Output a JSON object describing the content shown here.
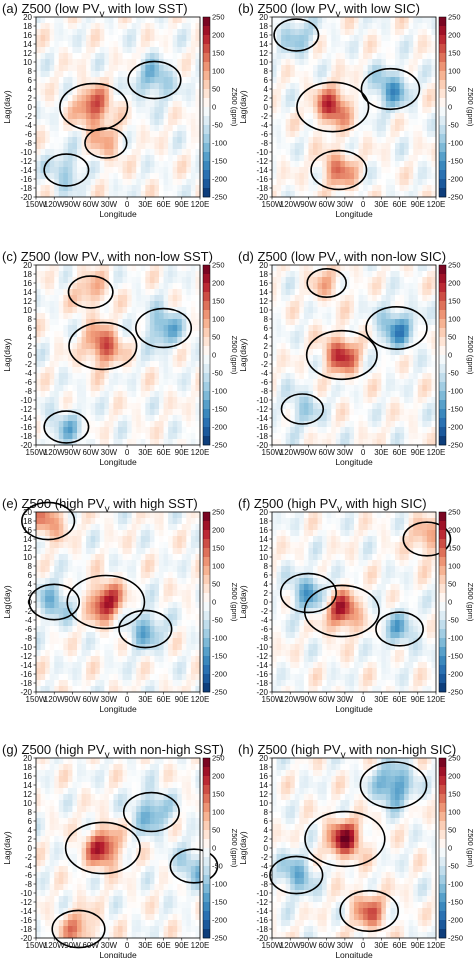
{
  "figure": {
    "colorbar": {
      "label": "Z500 (gpm)",
      "ticks": [
        250,
        200,
        150,
        100,
        50,
        0,
        -50,
        -100,
        -150,
        -200,
        -250
      ],
      "range": [
        -250,
        250
      ],
      "colors": [
        "#08306b",
        "#2166ac",
        "#4393c3",
        "#92c5de",
        "#d1e5f0",
        "#ffffff",
        "#fddbc7",
        "#f4a582",
        "#d6604d",
        "#b2182b",
        "#67001f"
      ]
    },
    "axes": {
      "ylabel": "Lag(day)",
      "xlabel": "Longitude",
      "yticks": [
        "20",
        "18",
        "16",
        "14",
        "12",
        "10",
        "8",
        "6",
        "4",
        "2",
        "0",
        "-2",
        "-4",
        "-6",
        "-8",
        "-10",
        "-12",
        "-14",
        "-16",
        "-18",
        "-20"
      ],
      "xticks": [
        "150W",
        "120W",
        "90W",
        "60W",
        "30W",
        "0",
        "30E",
        "60E",
        "90E",
        "120E"
      ]
    }
  },
  "chart_data": [
    {
      "id": "a",
      "type": "heatmap",
      "title_pre": "(a) Z500 (low PV",
      "title_sub": "y",
      "title_post": " with low SST)",
      "xlim": [
        -150,
        120
      ],
      "ylim": [
        -20,
        20
      ],
      "xlabel": "Longitude",
      "ylabel": "Lag(day)",
      "zlabel": "Z500 (gpm)",
      "zlim": [
        -250,
        250
      ],
      "positive_centers": [
        {
          "lon": -55,
          "lag": 0,
          "value": 175
        },
        {
          "lon": -35,
          "lag": -8,
          "value": 80
        }
      ],
      "negative_centers": [
        {
          "lon": 45,
          "lag": 6,
          "value": -120
        },
        {
          "lon": -100,
          "lag": -14,
          "value": -90
        }
      ]
    },
    {
      "id": "b",
      "type": "heatmap",
      "title_pre": "(b) Z500 (low PV",
      "title_sub": "y",
      "title_post": " with low SIC)",
      "xlim": [
        -150,
        120
      ],
      "ylim": [
        -20,
        20
      ],
      "xlabel": "Longitude",
      "ylabel": "Lag(day)",
      "zlabel": "Z500 (gpm)",
      "zlim": [
        -250,
        250
      ],
      "positive_centers": [
        {
          "lon": -50,
          "lag": 0,
          "value": 190
        },
        {
          "lon": -40,
          "lag": -14,
          "value": 130
        }
      ],
      "negative_centers": [
        {
          "lon": 45,
          "lag": 4,
          "value": -140
        },
        {
          "lon": -110,
          "lag": 16,
          "value": -90
        }
      ]
    },
    {
      "id": "c",
      "type": "heatmap",
      "title_pre": "(c) Z500 (low PV",
      "title_sub": "y",
      "title_post": " with non-low SST)",
      "xlim": [
        -150,
        120
      ],
      "ylim": [
        -20,
        20
      ],
      "xlabel": "Longitude",
      "ylabel": "Lag(day)",
      "zlabel": "Z500 (gpm)",
      "zlim": [
        -250,
        250
      ],
      "positive_centers": [
        {
          "lon": -40,
          "lag": 2,
          "value": 175
        },
        {
          "lon": -60,
          "lag": 14,
          "value": 90
        }
      ],
      "negative_centers": [
        {
          "lon": 60,
          "lag": 6,
          "value": -130
        },
        {
          "lon": -100,
          "lag": -16,
          "value": -90
        }
      ]
    },
    {
      "id": "d",
      "type": "heatmap",
      "title_pre": "(d) Z500 (low PV",
      "title_sub": "y",
      "title_post": " with non-low SIC)",
      "xlim": [
        -150,
        120
      ],
      "ylim": [
        -20,
        20
      ],
      "xlabel": "Longitude",
      "ylabel": "Lag(day)",
      "zlabel": "Z500 (gpm)",
      "zlim": [
        -250,
        250
      ],
      "positive_centers": [
        {
          "lon": -35,
          "lag": 0,
          "value": 185
        },
        {
          "lon": -60,
          "lag": 16,
          "value": 70
        }
      ],
      "negative_centers": [
        {
          "lon": 55,
          "lag": 6,
          "value": -150
        },
        {
          "lon": -100,
          "lag": -12,
          "value": -80
        }
      ]
    },
    {
      "id": "e",
      "type": "heatmap",
      "title_pre": "(e) Z500 (high PV",
      "title_sub": "y",
      "title_post": " with high SST)",
      "xlim": [
        -150,
        120
      ],
      "ylim": [
        -20,
        20
      ],
      "xlabel": "Longitude",
      "ylabel": "Lag(day)",
      "zlabel": "Z500 (gpm)",
      "zlim": [
        -250,
        250
      ],
      "positive_centers": [
        {
          "lon": -35,
          "lag": 0,
          "value": 210
        },
        {
          "lon": -130,
          "lag": 18,
          "value": 120
        }
      ],
      "negative_centers": [
        {
          "lon": 30,
          "lag": -6,
          "value": -120
        },
        {
          "lon": -120,
          "lag": 0,
          "value": -110
        }
      ]
    },
    {
      "id": "f",
      "type": "heatmap",
      "title_pre": "(f) Z500 (high PV",
      "title_sub": "y",
      "title_post": " with high SIC)",
      "xlim": [
        -150,
        120
      ],
      "ylim": [
        -20,
        20
      ],
      "xlabel": "Longitude",
      "ylabel": "Lag(day)",
      "zlabel": "Z500 (gpm)",
      "zlim": [
        -250,
        250
      ],
      "positive_centers": [
        {
          "lon": -35,
          "lag": -2,
          "value": 200
        },
        {
          "lon": 105,
          "lag": 14,
          "value": 100
        }
      ],
      "negative_centers": [
        {
          "lon": -90,
          "lag": 2,
          "value": -130
        },
        {
          "lon": 60,
          "lag": -6,
          "value": -100
        }
      ]
    },
    {
      "id": "g",
      "type": "heatmap",
      "title_pre": "(g) Z500 (high PV",
      "title_sub": "y",
      "title_post": " with non-high SST)",
      "xlim": [
        -150,
        120
      ],
      "ylim": [
        -20,
        20
      ],
      "xlabel": "Longitude",
      "ylabel": "Lag(day)",
      "zlabel": "Z500 (gpm)",
      "zlim": [
        -250,
        250
      ],
      "positive_centers": [
        {
          "lon": -40,
          "lag": 0,
          "value": 200
        },
        {
          "lon": -80,
          "lag": -18,
          "value": 120
        }
      ],
      "negative_centers": [
        {
          "lon": 40,
          "lag": 8,
          "value": -130
        },
        {
          "lon": 110,
          "lag": -4,
          "value": -100
        }
      ]
    },
    {
      "id": "h",
      "type": "heatmap",
      "title_pre": "(h) Z500 (high PV",
      "title_sub": "y",
      "title_post": " with non-high SIC)",
      "xlim": [
        -150,
        120
      ],
      "ylim": [
        -20,
        20
      ],
      "xlabel": "Longitude",
      "ylabel": "Lag(day)",
      "zlabel": "Z500 (gpm)",
      "zlim": [
        -250,
        250
      ],
      "positive_centers": [
        {
          "lon": -30,
          "lag": 2,
          "value": 220
        },
        {
          "lon": 10,
          "lag": -14,
          "value": 140
        }
      ],
      "negative_centers": [
        {
          "lon": 50,
          "lag": 14,
          "value": -170
        },
        {
          "lon": -110,
          "lag": -6,
          "value": -120
        }
      ]
    }
  ]
}
